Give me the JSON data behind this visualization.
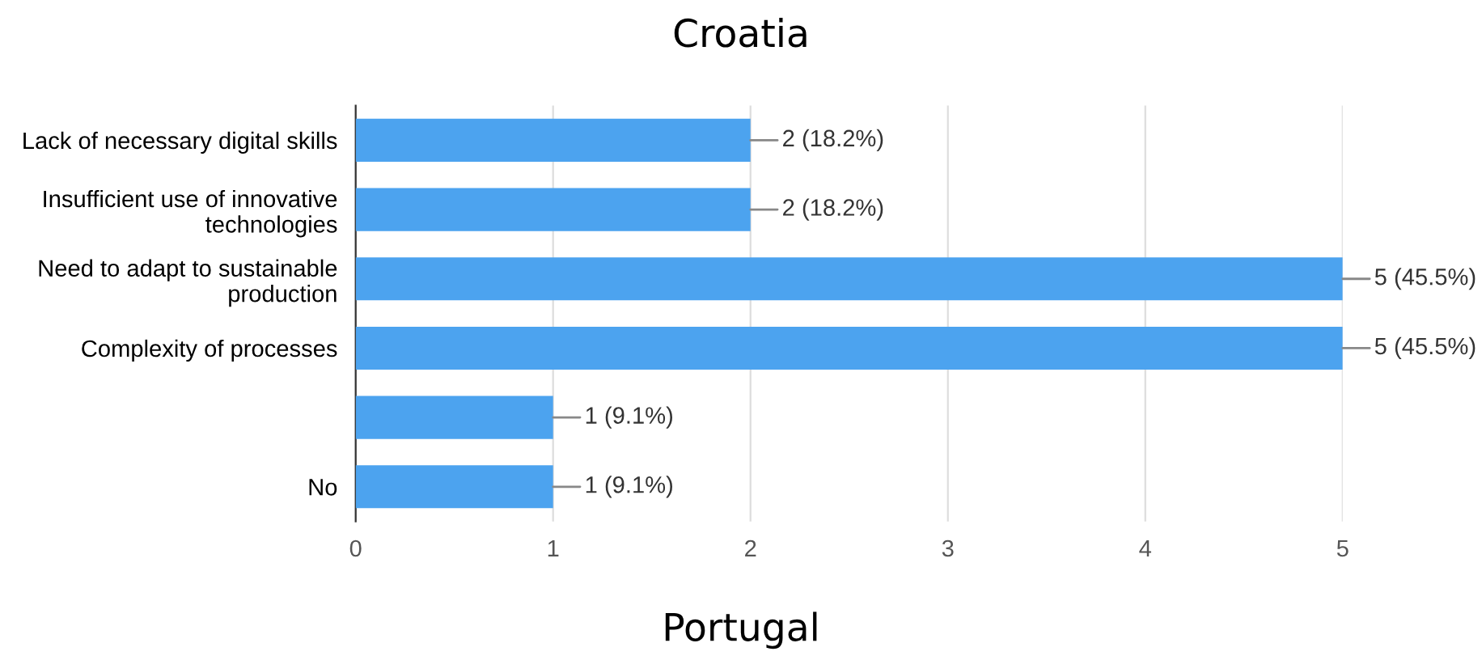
{
  "chart_data": {
    "type": "bar",
    "orientation": "horizontal",
    "title": "Croatia",
    "categories": [
      "Lack of necessary digital skills",
      "Insufficient use of innovative\ntechnologies",
      "Need to adapt to sustainable\nproduction",
      "Complexity of processes",
      null,
      "No"
    ],
    "values": [
      2,
      2,
      5,
      5,
      1,
      1
    ],
    "color": "#4ca3ef",
    "value_labels": [
      "2 (18.2%)",
      "2 (18.2%)",
      "5 (45.5%)",
      "5 (45.5%)",
      "1 (9.1%)",
      "1 (9.1%)"
    ],
    "xlim": [
      0,
      5
    ],
    "xticks": [
      0,
      1,
      2,
      3,
      4,
      5
    ],
    "grid": "x",
    "legend": false,
    "annotations": [
      "Portugal"
    ]
  }
}
